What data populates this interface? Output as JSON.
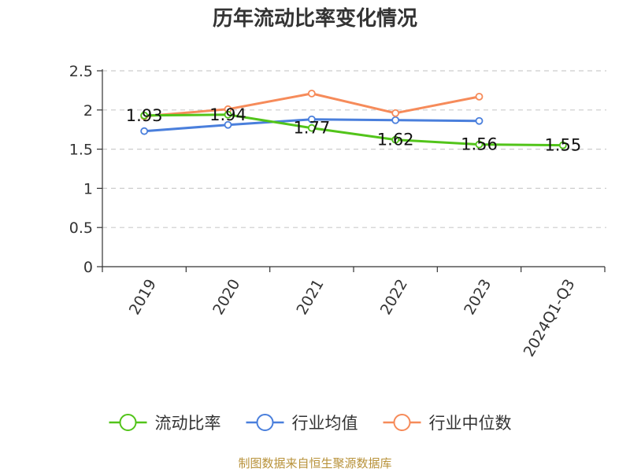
{
  "chart_data": {
    "type": "line",
    "title": "历年流动比率变化情况",
    "categories": [
      "2019",
      "2020",
      "2021",
      "2022",
      "2023",
      "2024Q1-Q3"
    ],
    "ylim": [
      0,
      2.5
    ],
    "yticks": [
      "0",
      "0.5",
      "1",
      "1.5",
      "2",
      "2.5"
    ],
    "grid": "horizontal-dashed",
    "legend_position": "bottom",
    "series": [
      {
        "name": "流动比率",
        "color": "#52c41a",
        "values": [
          1.93,
          1.94,
          1.77,
          1.62,
          1.56,
          1.55
        ],
        "labels": [
          "1.93",
          "1.94",
          "1.77",
          "1.62",
          "1.56",
          "1.55"
        ]
      },
      {
        "name": "行业均值",
        "color": "#4a7fdc",
        "values": [
          1.73,
          1.81,
          1.88,
          1.87,
          1.86,
          null
        ]
      },
      {
        "name": "行业中位数",
        "color": "#f68b5a",
        "values": [
          1.92,
          2.01,
          2.21,
          1.96,
          2.17,
          null
        ]
      }
    ]
  },
  "source": "制图数据来自恒生聚源数据库"
}
